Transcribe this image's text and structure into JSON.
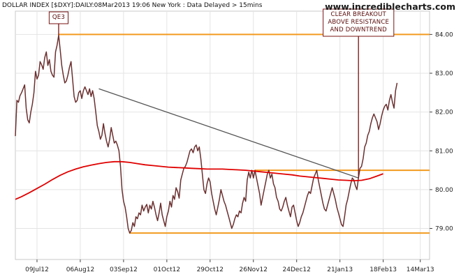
{
  "header": "DOLLAR INDEX [$DXY]:DAILY:08Mar2013 19:06 New York : Data Delayed > 15mins",
  "brand": "www.incrediblecharts.com",
  "colors": {
    "price": "#6b2f2f",
    "moving_average": "#e00000",
    "support_resistance": "#f39a1e",
    "downtrend": "#555555",
    "annotation": "#7a1212",
    "grid": "#e4e4e4"
  },
  "chart_data": {
    "type": "line",
    "title": "DOLLAR INDEX [$DXY]",
    "x_ticks": [
      "09Jul12",
      "06Aug12",
      "03Sep12",
      "01Oct12",
      "29Oct12",
      "26Nov12",
      "24Dec12",
      "21Jan13",
      "18Feb13",
      "14Mar13"
    ],
    "x_tick_days": [
      0,
      28,
      56,
      84,
      112,
      140,
      168,
      196,
      224,
      248
    ],
    "xlim": [
      -14,
      254
    ],
    "y_ticks": [
      "84.00",
      "83.00",
      "82.00",
      "81.00",
      "80.00",
      "79.00"
    ],
    "ylim": [
      78.2,
      84.6
    ],
    "series": [
      {
        "role": "price",
        "values": [
          [
            -14,
            81.38
          ],
          [
            -13,
            82.3
          ],
          [
            -12,
            82.25
          ],
          [
            -11,
            82.42
          ],
          [
            -10,
            82.5
          ],
          [
            -9,
            82.6
          ],
          [
            -8,
            82.7
          ],
          [
            -7,
            82.1
          ],
          [
            -6,
            81.8
          ],
          [
            -5,
            81.72
          ],
          [
            -4,
            82.0
          ],
          [
            -3,
            82.2
          ],
          [
            -2,
            82.5
          ],
          [
            -1,
            83.05
          ],
          [
            0,
            82.85
          ],
          [
            1,
            82.95
          ],
          [
            2,
            83.3
          ],
          [
            3,
            83.22
          ],
          [
            4,
            83.1
          ],
          [
            5,
            83.4
          ],
          [
            6,
            83.55
          ],
          [
            7,
            83.2
          ],
          [
            8,
            83.35
          ],
          [
            9,
            83.05
          ],
          [
            10,
            82.95
          ],
          [
            11,
            82.9
          ],
          [
            12,
            83.55
          ],
          [
            13,
            83.72
          ],
          [
            14,
            83.98
          ],
          [
            15,
            83.6
          ],
          [
            16,
            83.2
          ],
          [
            17,
            82.95
          ],
          [
            18,
            82.75
          ],
          [
            19,
            82.8
          ],
          [
            20,
            82.95
          ],
          [
            21,
            83.15
          ],
          [
            22,
            83.3
          ],
          [
            23,
            82.85
          ],
          [
            24,
            82.4
          ],
          [
            25,
            82.25
          ],
          [
            26,
            82.3
          ],
          [
            27,
            82.5
          ],
          [
            28,
            82.55
          ],
          [
            29,
            82.35
          ],
          [
            30,
            82.55
          ],
          [
            31,
            82.65
          ],
          [
            32,
            82.55
          ],
          [
            33,
            82.45
          ],
          [
            34,
            82.6
          ],
          [
            35,
            82.4
          ],
          [
            36,
            82.55
          ],
          [
            37,
            82.35
          ],
          [
            38,
            82.0
          ],
          [
            39,
            81.65
          ],
          [
            40,
            81.5
          ],
          [
            41,
            81.3
          ],
          [
            42,
            81.4
          ],
          [
            43,
            81.7
          ],
          [
            44,
            81.45
          ],
          [
            45,
            81.25
          ],
          [
            46,
            81.1
          ],
          [
            47,
            81.3
          ],
          [
            48,
            81.6
          ],
          [
            49,
            81.4
          ],
          [
            50,
            81.2
          ],
          [
            51,
            81.25
          ],
          [
            52,
            81.15
          ],
          [
            53,
            81.0
          ],
          [
            54,
            80.6
          ],
          [
            55,
            80.0
          ],
          [
            56,
            79.7
          ],
          [
            57,
            79.55
          ],
          [
            58,
            79.3
          ],
          [
            59,
            79.0
          ],
          [
            60,
            78.88
          ],
          [
            61,
            78.95
          ],
          [
            62,
            79.15
          ],
          [
            63,
            79.05
          ],
          [
            64,
            79.3
          ],
          [
            65,
            79.25
          ],
          [
            66,
            79.4
          ],
          [
            67,
            79.35
          ],
          [
            68,
            79.6
          ],
          [
            69,
            79.45
          ],
          [
            70,
            79.55
          ],
          [
            71,
            79.62
          ],
          [
            72,
            79.4
          ],
          [
            73,
            79.6
          ],
          [
            74,
            79.5
          ],
          [
            75,
            79.7
          ],
          [
            76,
            79.55
          ],
          [
            77,
            79.35
          ],
          [
            78,
            79.2
          ],
          [
            79,
            79.4
          ],
          [
            80,
            79.65
          ],
          [
            81,
            79.35
          ],
          [
            82,
            79.2
          ],
          [
            83,
            79.05
          ],
          [
            84,
            79.3
          ],
          [
            85,
            79.45
          ],
          [
            86,
            79.7
          ],
          [
            87,
            79.55
          ],
          [
            88,
            79.85
          ],
          [
            89,
            79.75
          ],
          [
            90,
            80.05
          ],
          [
            91,
            79.95
          ],
          [
            92,
            79.78
          ],
          [
            93,
            80.25
          ],
          [
            94,
            80.4
          ],
          [
            95,
            80.55
          ],
          [
            96,
            80.6
          ],
          [
            97,
            80.7
          ],
          [
            98,
            80.85
          ],
          [
            99,
            81.0
          ],
          [
            100,
            81.05
          ],
          [
            101,
            80.95
          ],
          [
            102,
            81.1
          ],
          [
            103,
            81.15
          ],
          [
            104,
            81.0
          ],
          [
            105,
            81.1
          ],
          [
            106,
            80.8
          ],
          [
            107,
            80.4
          ],
          [
            108,
            80.0
          ],
          [
            109,
            79.9
          ],
          [
            110,
            80.15
          ],
          [
            111,
            80.3
          ],
          [
            112,
            80.2
          ],
          [
            113,
            79.9
          ],
          [
            114,
            79.7
          ],
          [
            115,
            79.5
          ],
          [
            116,
            79.35
          ],
          [
            117,
            79.55
          ],
          [
            118,
            79.75
          ],
          [
            119,
            80.0
          ],
          [
            120,
            79.85
          ],
          [
            121,
            79.7
          ],
          [
            122,
            79.6
          ],
          [
            123,
            79.45
          ],
          [
            124,
            79.3
          ],
          [
            125,
            79.15
          ],
          [
            126,
            79.0
          ],
          [
            127,
            79.1
          ],
          [
            128,
            79.25
          ],
          [
            129,
            79.35
          ],
          [
            130,
            79.3
          ],
          [
            131,
            79.45
          ],
          [
            132,
            79.4
          ],
          [
            133,
            79.65
          ],
          [
            134,
            79.8
          ],
          [
            135,
            79.7
          ],
          [
            136,
            80.25
          ],
          [
            137,
            80.45
          ],
          [
            138,
            80.3
          ],
          [
            139,
            80.5
          ],
          [
            140,
            80.3
          ],
          [
            141,
            80.5
          ],
          [
            142,
            80.3
          ],
          [
            143,
            80.1
          ],
          [
            144,
            79.9
          ],
          [
            145,
            79.6
          ],
          [
            146,
            79.8
          ],
          [
            147,
            80.0
          ],
          [
            148,
            80.2
          ],
          [
            149,
            80.4
          ],
          [
            150,
            80.5
          ],
          [
            151,
            80.3
          ],
          [
            152,
            80.4
          ],
          [
            153,
            80.15
          ],
          [
            154,
            80.05
          ],
          [
            155,
            79.8
          ],
          [
            156,
            79.7
          ],
          [
            157,
            79.5
          ],
          [
            158,
            79.45
          ],
          [
            159,
            79.55
          ],
          [
            160,
            79.7
          ],
          [
            161,
            79.8
          ],
          [
            162,
            79.6
          ],
          [
            163,
            79.45
          ],
          [
            164,
            79.3
          ],
          [
            165,
            79.55
          ],
          [
            166,
            79.6
          ],
          [
            167,
            79.4
          ],
          [
            168,
            79.2
          ],
          [
            169,
            79.05
          ],
          [
            170,
            79.15
          ],
          [
            171,
            79.3
          ],
          [
            172,
            79.4
          ],
          [
            173,
            79.55
          ],
          [
            174,
            79.7
          ],
          [
            175,
            79.85
          ],
          [
            176,
            79.95
          ],
          [
            177,
            79.9
          ],
          [
            178,
            80.1
          ],
          [
            179,
            80.3
          ],
          [
            180,
            80.4
          ],
          [
            181,
            80.5
          ],
          [
            182,
            80.25
          ],
          [
            183,
            80.05
          ],
          [
            184,
            79.85
          ],
          [
            185,
            79.65
          ],
          [
            186,
            79.5
          ],
          [
            187,
            79.45
          ],
          [
            188,
            79.6
          ],
          [
            189,
            79.75
          ],
          [
            190,
            79.9
          ],
          [
            191,
            80.05
          ],
          [
            192,
            79.9
          ],
          [
            193,
            79.75
          ],
          [
            194,
            79.55
          ],
          [
            195,
            79.4
          ],
          [
            196,
            79.25
          ],
          [
            197,
            79.1
          ],
          [
            198,
            79.05
          ],
          [
            199,
            79.3
          ],
          [
            200,
            79.6
          ],
          [
            201,
            79.75
          ],
          [
            202,
            79.95
          ],
          [
            203,
            80.15
          ],
          [
            204,
            80.3
          ],
          [
            205,
            80.25
          ],
          [
            206,
            80.1
          ],
          [
            207,
            80.0
          ],
          [
            208,
            80.3
          ],
          [
            209,
            80.55
          ],
          [
            210,
            80.6
          ],
          [
            211,
            80.8
          ],
          [
            212,
            81.1
          ],
          [
            213,
            81.2
          ],
          [
            214,
            81.4
          ],
          [
            215,
            81.5
          ],
          [
            216,
            81.7
          ],
          [
            217,
            81.85
          ],
          [
            218,
            81.95
          ],
          [
            219,
            81.85
          ],
          [
            220,
            81.75
          ],
          [
            221,
            81.55
          ],
          [
            222,
            81.7
          ],
          [
            223,
            81.9
          ],
          [
            224,
            82.05
          ],
          [
            225,
            82.15
          ],
          [
            226,
            82.2
          ],
          [
            227,
            82.05
          ],
          [
            228,
            82.3
          ],
          [
            229,
            82.45
          ],
          [
            230,
            82.25
          ],
          [
            231,
            82.1
          ],
          [
            232,
            82.55
          ],
          [
            233,
            82.75
          ]
        ]
      },
      {
        "role": "moving_average",
        "values": [
          [
            -14,
            79.75
          ],
          [
            -10,
            79.82
          ],
          [
            -5,
            79.92
          ],
          [
            0,
            80.03
          ],
          [
            5,
            80.14
          ],
          [
            10,
            80.26
          ],
          [
            15,
            80.37
          ],
          [
            20,
            80.46
          ],
          [
            25,
            80.53
          ],
          [
            30,
            80.59
          ],
          [
            35,
            80.63
          ],
          [
            40,
            80.67
          ],
          [
            45,
            80.7
          ],
          [
            50,
            80.72
          ],
          [
            55,
            80.72
          ],
          [
            60,
            80.7
          ],
          [
            65,
            80.67
          ],
          [
            70,
            80.64
          ],
          [
            75,
            80.62
          ],
          [
            80,
            80.6
          ],
          [
            85,
            80.58
          ],
          [
            90,
            80.57
          ],
          [
            95,
            80.56
          ],
          [
            100,
            80.55
          ],
          [
            105,
            80.54
          ],
          [
            110,
            80.53
          ],
          [
            115,
            80.53
          ],
          [
            120,
            80.53
          ],
          [
            125,
            80.52
          ],
          [
            130,
            80.51
          ],
          [
            135,
            80.5
          ],
          [
            140,
            80.48
          ],
          [
            145,
            80.46
          ],
          [
            150,
            80.44
          ],
          [
            155,
            80.42
          ],
          [
            160,
            80.4
          ],
          [
            165,
            80.38
          ],
          [
            170,
            80.35
          ],
          [
            175,
            80.33
          ],
          [
            180,
            80.31
          ],
          [
            185,
            80.29
          ],
          [
            190,
            80.27
          ],
          [
            195,
            80.25
          ],
          [
            200,
            80.24
          ],
          [
            205,
            80.23
          ],
          [
            210,
            80.24
          ],
          [
            215,
            80.28
          ],
          [
            220,
            80.35
          ],
          [
            224,
            80.41
          ]
        ]
      }
    ],
    "horizontal_lines": [
      {
        "role": "resistance-top",
        "y": 84.0,
        "x": [
          14,
          254
        ]
      },
      {
        "role": "resistance",
        "y": 80.5,
        "x": [
          141,
          254
        ]
      },
      {
        "role": "support",
        "y": 78.88,
        "x": [
          60,
          254
        ]
      }
    ],
    "trend_line": {
      "from": [
        40,
        82.6
      ],
      "to": [
        208,
        80.3
      ]
    },
    "annotations": [
      {
        "name": "qe3",
        "lines": [
          "QE3"
        ],
        "at": [
          14,
          83.98
        ]
      },
      {
        "name": "breakout",
        "lines": [
          "CLEAR BREAKOUT",
          "ABOVE RESISTANCE",
          "AND DOWNTREND"
        ],
        "at": [
          208,
          80.3
        ]
      }
    ]
  }
}
